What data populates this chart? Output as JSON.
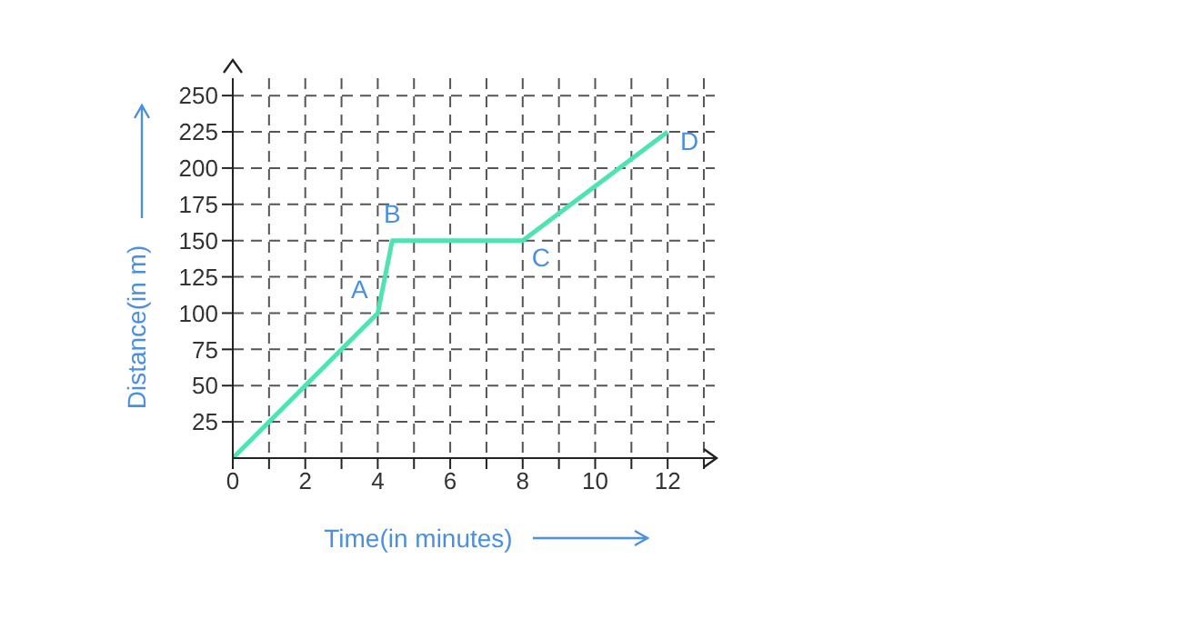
{
  "chart_data": {
    "type": "line",
    "xlabel": "Time(in minutes)",
    "ylabel": "Distance(in m)",
    "x": [
      0,
      4,
      4.4,
      8,
      12
    ],
    "series": [
      {
        "color": "#4fe3b4",
        "values": [
          0,
          100,
          150,
          150,
          225
        ]
      }
    ],
    "xlim": [
      0,
      13.3
    ],
    "ylim": [
      0,
      262
    ],
    "xticks": [
      {
        "value": 0,
        "label": "0"
      },
      {
        "value": 1,
        "label": null
      },
      2,
      {
        "value": 3,
        "label": null
      },
      4,
      {
        "value": 5,
        "label": null
      },
      6,
      {
        "value": 7,
        "label": null
      },
      8,
      {
        "value": 9,
        "label": null
      },
      10,
      {
        "value": 11,
        "label": null
      },
      12,
      {
        "value": 13,
        "label": null
      }
    ],
    "yticks": [
      25,
      50,
      75,
      100,
      125,
      150,
      175,
      200,
      225,
      250
    ],
    "grid": true,
    "marker": "none",
    "line_style": "solid",
    "annotations": [
      {
        "text": "A",
        "x": 4,
        "y": 100
      },
      {
        "text": "B",
        "x": 4.4,
        "y": 150
      },
      {
        "text": "C",
        "x": 8,
        "y": 150
      },
      {
        "text": "D",
        "x": 12,
        "y": 225
      }
    ]
  }
}
